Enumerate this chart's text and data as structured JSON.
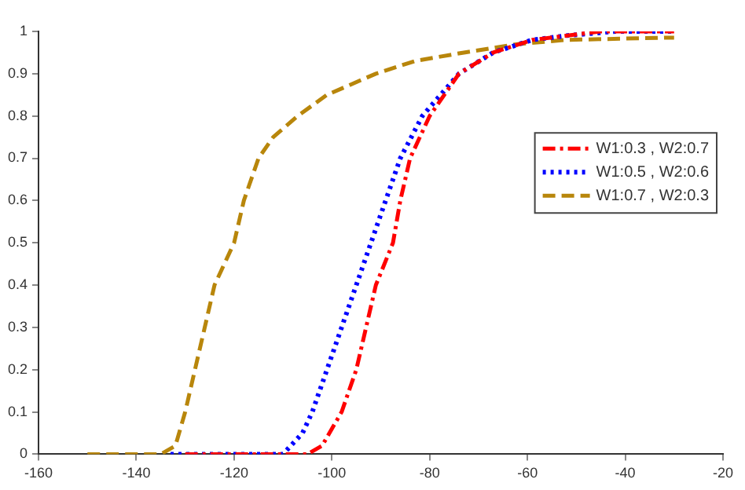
{
  "chart_data": {
    "type": "line",
    "xlim": [
      -160,
      -20
    ],
    "xticks": [
      -160,
      -140,
      -120,
      -100,
      -80,
      -60,
      -40,
      -20
    ],
    "ylim": [
      0,
      1
    ],
    "yticks": [
      0,
      0.1,
      0.2,
      0.3,
      0.4,
      0.5,
      0.6,
      0.7,
      0.8,
      0.9,
      1
    ],
    "grid": false,
    "legend": "right",
    "marker": "none",
    "series": [
      {
        "name": "W1:0.3 , W2:0.7",
        "color": "#ff0000",
        "line_style": "dashdot",
        "x": [
          -130,
          -105,
          -102,
          -98,
          -95,
          -93,
          -91,
          -87.5,
          -86,
          -84,
          -80,
          -74,
          -67,
          -59,
          -45,
          -30
        ],
        "values": [
          0,
          0,
          0.02,
          0.1,
          0.2,
          0.3,
          0.4,
          0.5,
          0.6,
          0.7,
          0.8,
          0.9,
          0.95,
          0.98,
          1,
          1
        ]
      },
      {
        "name": "W1:0.5 , W2:0.6",
        "color": "#0000ff",
        "line_style": "dotted",
        "x": [
          -133,
          -110,
          -106,
          -104,
          -101,
          -98,
          -95,
          -92,
          -89,
          -86,
          -81.5,
          -74,
          -67,
          -59,
          -52,
          -42,
          -30
        ],
        "values": [
          0,
          0,
          0.05,
          0.1,
          0.2,
          0.3,
          0.4,
          0.5,
          0.6,
          0.7,
          0.8,
          0.9,
          0.95,
          0.98,
          0.99,
          1,
          1
        ]
      },
      {
        "name": "W1:0.7 , W2:0.3",
        "color": "#b8860b",
        "line_style": "dashed",
        "x": [
          -150,
          -135,
          -132,
          -130,
          -128,
          -126,
          -124,
          -120,
          -118,
          -115,
          -112,
          -107,
          -101,
          -91,
          -83,
          -73,
          -62,
          -52,
          -32,
          -30
        ],
        "values": [
          0,
          0,
          0.02,
          0.1,
          0.2,
          0.3,
          0.4,
          0.5,
          0.6,
          0.7,
          0.75,
          0.8,
          0.85,
          0.9,
          0.93,
          0.95,
          0.97,
          0.98,
          0.985,
          0.985
        ]
      }
    ]
  }
}
